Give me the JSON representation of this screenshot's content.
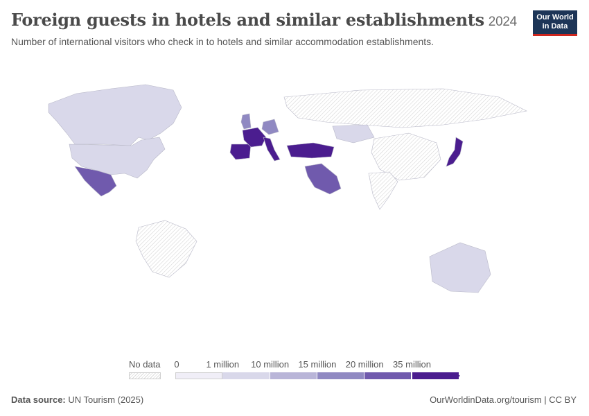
{
  "header": {
    "title": "Foreign guests in hotels and similar establishments",
    "year": "2024",
    "subtitle": "Number of international visitors who check in to hotels and similar accommodation establishments."
  },
  "logo": {
    "line1": "Our World",
    "line2": "in Data"
  },
  "legend": {
    "no_data_label": "No data",
    "ticks": [
      "0",
      "1 million",
      "10 million",
      "15 million",
      "20 million",
      "35 million"
    ],
    "colors": [
      "#f0eef7",
      "#d9d8ea",
      "#b9b5d8",
      "#9089c2",
      "#705aad",
      "#4b1d8f"
    ],
    "no_data_color": "#e6e6e6"
  },
  "footer": {
    "source_label": "Data source:",
    "source": "UN Tourism (2025)",
    "attribution": "OurWorldinData.org/tourism | CC BY"
  },
  "map_regions": [
    {
      "name": "Canada",
      "bin": 1
    },
    {
      "name": "United States",
      "bin": 1
    },
    {
      "name": "Mexico",
      "bin": 4
    },
    {
      "name": "Brazil",
      "bin": -1
    },
    {
      "name": "Spain",
      "bin": 5
    },
    {
      "name": "France",
      "bin": 5
    },
    {
      "name": "Italy",
      "bin": 5
    },
    {
      "name": "Turkey",
      "bin": 5
    },
    {
      "name": "Japan",
      "bin": 5
    },
    {
      "name": "Saudi Arabia",
      "bin": 4
    },
    {
      "name": "Germany",
      "bin": 3
    },
    {
      "name": "United Kingdom",
      "bin": 3
    },
    {
      "name": "Russia",
      "bin": -1
    },
    {
      "name": "China",
      "bin": -1
    },
    {
      "name": "India",
      "bin": -1
    },
    {
      "name": "Australia",
      "bin": 1
    },
    {
      "name": "Kazakhstan",
      "bin": 1
    }
  ]
}
